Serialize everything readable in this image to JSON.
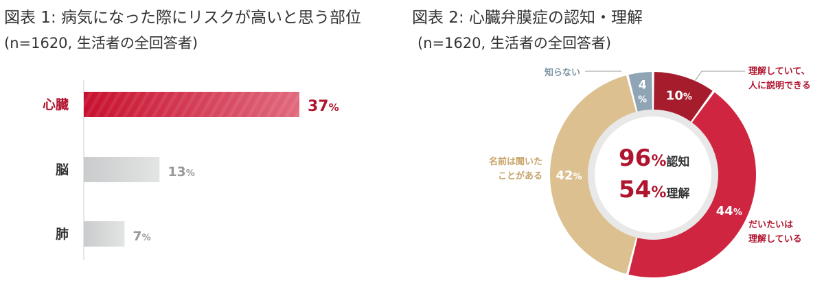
{
  "chart_data": [
    {
      "type": "bar",
      "orientation": "horizontal",
      "title": "図表 1: 病気になった際にリスクが高いと思う部位",
      "subtitle": "(n=1620, 生活者の全回答者)",
      "categories": [
        "心臓",
        "脳",
        "肺"
      ],
      "values": [
        37,
        13,
        7
      ],
      "data_labels": [
        "37",
        "13",
        "7"
      ],
      "unit": "%",
      "colors": [
        "#c8102e",
        "#cfd1d2",
        "#cfd1d2"
      ],
      "label_colors": [
        "#b0152f",
        "#999999",
        "#999999"
      ],
      "category_colors": [
        "#b0152f",
        "#333333",
        "#333333"
      ]
    },
    {
      "type": "pie",
      "donut": true,
      "title": "図表 2: 心臓弁膜症の認知・理解",
      "subtitle": "(n=1620, 生活者の全回答者)",
      "slices": [
        {
          "label": "理解していて、人に説明できる",
          "label_lines": [
            "理解していて、",
            "人に説明できる"
          ],
          "value": 10,
          "color": "#a51d2d",
          "label_color": "#b0152f"
        },
        {
          "label": "だいたいは理解している",
          "label_lines": [
            "だいたいは",
            "理解している"
          ],
          "value": 44,
          "color": "#cf2540",
          "label_color": "#b0152f"
        },
        {
          "label": "名前は聞いたことがある",
          "label_lines": [
            "名前は聞いた",
            "ことがある"
          ],
          "value": 42,
          "color": "#dcc08f",
          "label_color": "#c7a46a"
        },
        {
          "label": "知らない",
          "label_lines": [
            "知らない"
          ],
          "value": 4,
          "color": "#8fa5b5",
          "label_color": "#7f96a6"
        }
      ],
      "unit": "%",
      "center": [
        {
          "value": "96",
          "unit": "%",
          "text": "認知"
        },
        {
          "value": "54",
          "unit": "%",
          "text": "理解"
        }
      ]
    }
  ]
}
